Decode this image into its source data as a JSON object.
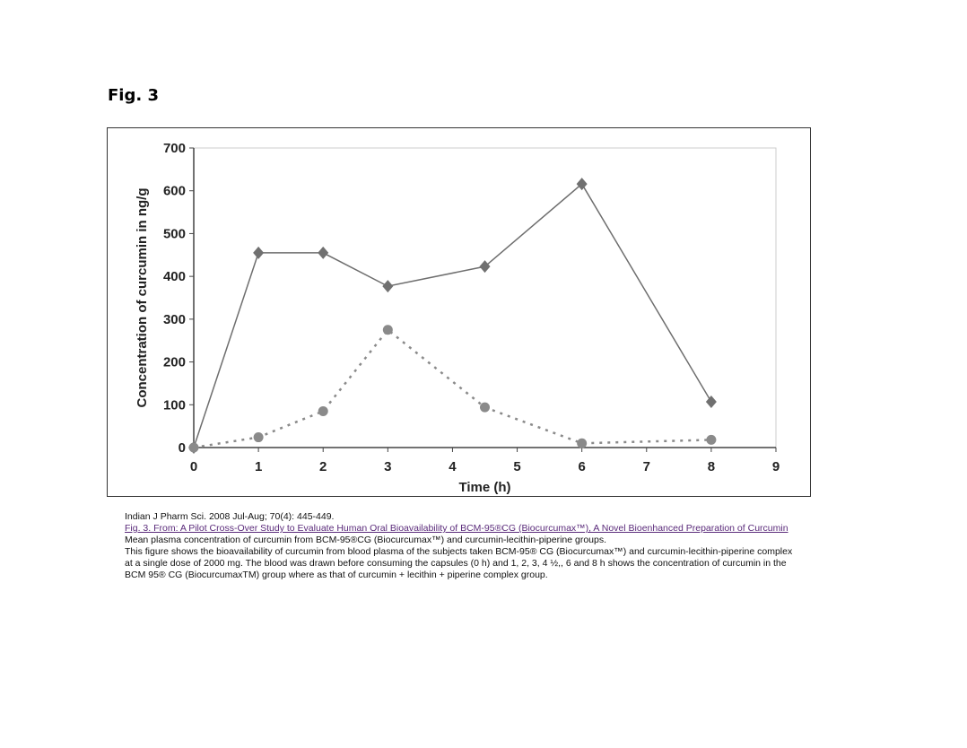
{
  "figure_label": "Fig. 3",
  "chart_data": {
    "type": "line",
    "title": "",
    "xlabel": "Time (h)",
    "ylabel": "Concentration of curcumin in ng/g",
    "xlim": [
      0,
      9
    ],
    "ylim": [
      0,
      700
    ],
    "xticks": [
      0,
      1,
      2,
      3,
      4,
      5,
      6,
      7,
      8,
      9
    ],
    "yticks": [
      0,
      100,
      200,
      300,
      400,
      500,
      600,
      700
    ],
    "grid": false,
    "legend": "none",
    "series": [
      {
        "style": "solid",
        "marker": "diamond",
        "color": "#6e6e6e",
        "x": [
          0,
          1,
          2,
          3,
          4.5,
          6,
          8
        ],
        "y": [
          0,
          455,
          455,
          377,
          423,
          616,
          107
        ]
      },
      {
        "style": "dashed",
        "marker": "circle",
        "color": "#8a8a8a",
        "x": [
          0,
          1,
          2,
          3,
          4.5,
          6,
          8
        ],
        "y": [
          0,
          24,
          85,
          275,
          94,
          10,
          18
        ]
      }
    ]
  },
  "caption": {
    "citation": "Indian J Pharm Sci. 2008 Jul-Aug; 70(4): 445-449.",
    "link": "Fig. 3. From: A Pilot Cross-Over Study to Evaluate Human Oral Bioavailability of BCM-95®CG (Biocurcumax™), A Novel Bioenhanced Preparation of Curcumin",
    "line1": "Mean plasma concentration of curcumin from BCM-95®CG (Biocurcumax™) and curcumin-lecithin-piperine groups.",
    "body": "This figure shows the bioavailability of curcumin from blood plasma of the subjects taken BCM-95® CG (Biocurcumax™) and curcumin-lecithin-piperine complex at a single dose of 2000 mg. The blood was drawn before consuming the capsules (0 h) and 1, 2, 3, 4 ½,, 6 and 8 h shows the concentration of curcumin in the BCM 95® CG (BiocurcumaxTM) group where as that of curcumin + lecithin + piperine complex group."
  }
}
